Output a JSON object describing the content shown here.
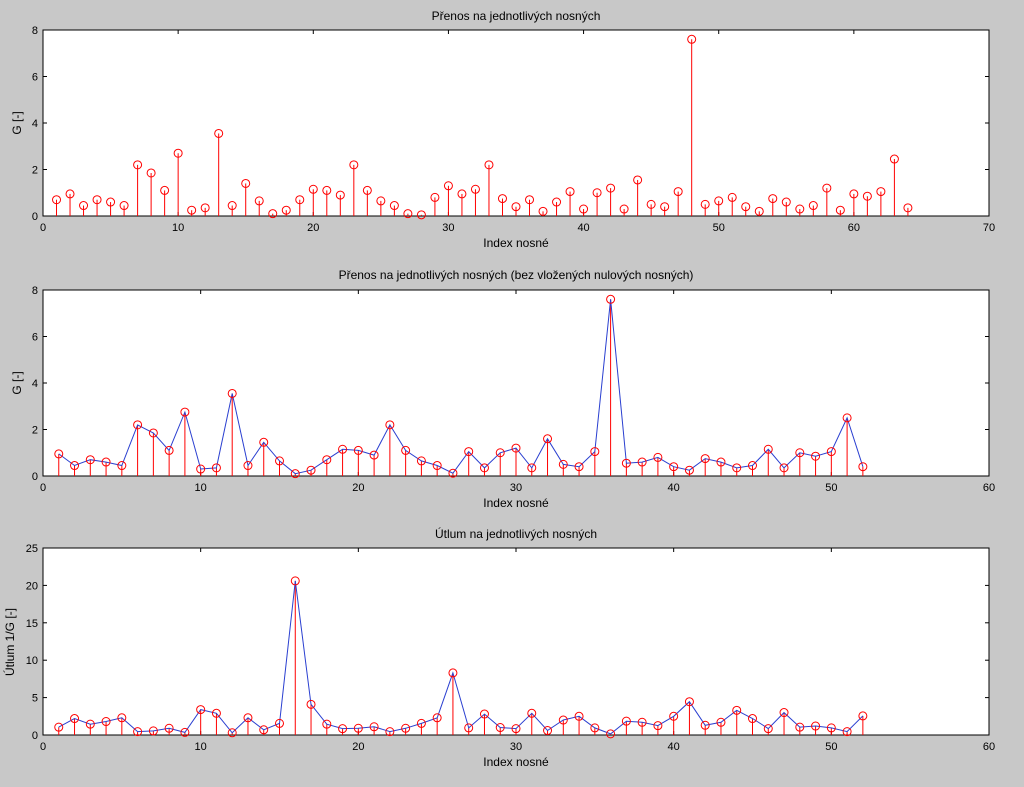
{
  "chart_data": [
    {
      "type": "stem",
      "title": "Přenos na jednotlivých nosných",
      "xlabel": "Index nosné",
      "ylabel": "G [-]",
      "xlim": [
        0,
        70
      ],
      "ylim": [
        0,
        8
      ],
      "xticks": [
        0,
        10,
        20,
        30,
        40,
        50,
        60,
        70
      ],
      "yticks": [
        0,
        2,
        4,
        6,
        8
      ],
      "grid": false,
      "line_connect": false,
      "colors": {
        "stem": "#ff0000",
        "marker": "#ff0000",
        "line": "#2a3fd0"
      },
      "x": [
        1,
        2,
        3,
        4,
        5,
        6,
        7,
        8,
        9,
        10,
        11,
        12,
        13,
        14,
        15,
        16,
        17,
        18,
        19,
        20,
        21,
        22,
        23,
        24,
        25,
        26,
        27,
        28,
        29,
        30,
        31,
        32,
        33,
        34,
        35,
        36,
        37,
        38,
        39,
        40,
        41,
        42,
        43,
        44,
        45,
        46,
        47,
        48,
        49,
        50,
        51,
        52,
        53,
        54,
        55,
        56,
        57,
        58,
        59,
        60,
        61,
        62,
        63,
        64
      ],
      "y": [
        0.7,
        0.95,
        0.45,
        0.7,
        0.6,
        0.45,
        2.2,
        1.85,
        1.1,
        2.7,
        0.25,
        0.35,
        3.55,
        0.45,
        1.4,
        0.65,
        0.1,
        0.25,
        0.7,
        1.15,
        1.1,
        0.9,
        2.2,
        1.1,
        0.65,
        0.45,
        0.1,
        0.05,
        0.8,
        1.3,
        0.95,
        1.15,
        2.2,
        0.75,
        0.4,
        0.7,
        0.2,
        0.6,
        1.05,
        0.3,
        1.0,
        1.2,
        0.3,
        1.55,
        0.5,
        0.4,
        1.05,
        7.6,
        0.5,
        0.65,
        0.8,
        0.4,
        0.2,
        0.75,
        0.6,
        0.3,
        0.45,
        1.2,
        0.25,
        0.95,
        0.85,
        1.05,
        2.45,
        0.35
      ]
    },
    {
      "type": "stem",
      "title": "Přenos na jednotlivých nosných (bez vložených nulových nosných)",
      "xlabel": "Index nosné",
      "ylabel": "G [-]",
      "xlim": [
        0,
        60
      ],
      "ylim": [
        0,
        8
      ],
      "xticks": [
        0,
        10,
        20,
        30,
        40,
        50,
        60
      ],
      "yticks": [
        0,
        2,
        4,
        6,
        8
      ],
      "grid": false,
      "line_connect": true,
      "colors": {
        "stem": "#ff0000",
        "marker": "#ff0000",
        "line": "#2a3fd0"
      },
      "x": [
        1,
        2,
        3,
        4,
        5,
        6,
        7,
        8,
        9,
        10,
        11,
        12,
        13,
        14,
        15,
        16,
        17,
        18,
        19,
        20,
        21,
        22,
        23,
        24,
        25,
        26,
        27,
        28,
        29,
        30,
        31,
        32,
        33,
        34,
        35,
        36,
        37,
        38,
        39,
        40,
        41,
        42,
        43,
        44,
        45,
        46,
        47,
        48,
        49,
        50,
        51,
        52
      ],
      "y": [
        0.95,
        0.45,
        0.7,
        0.6,
        0.45,
        2.2,
        1.85,
        1.1,
        2.75,
        0.3,
        0.35,
        3.55,
        0.45,
        1.45,
        0.65,
        0.1,
        0.25,
        0.7,
        1.15,
        1.1,
        0.9,
        2.2,
        1.1,
        0.65,
        0.45,
        0.12,
        1.05,
        0.35,
        1.0,
        1.2,
        0.35,
        1.6,
        0.5,
        0.4,
        1.05,
        7.6,
        0.55,
        0.6,
        0.8,
        0.4,
        0.25,
        0.75,
        0.6,
        0.35,
        0.45,
        1.15,
        0.35,
        1.0,
        0.85,
        1.05,
        2.5,
        0.4
      ]
    },
    {
      "type": "stem",
      "title": "Útlum na jednotlivých nosných",
      "xlabel": "Index nosné",
      "ylabel": "Útlum 1/G [-]",
      "xlim": [
        0,
        60
      ],
      "ylim": [
        0,
        25
      ],
      "xticks": [
        0,
        10,
        20,
        30,
        40,
        50,
        60
      ],
      "yticks": [
        0,
        5,
        10,
        15,
        20,
        25
      ],
      "grid": false,
      "line_connect": true,
      "colors": {
        "stem": "#ff0000",
        "marker": "#ff0000",
        "line": "#2a3fd0"
      },
      "x": [
        1,
        2,
        3,
        4,
        5,
        6,
        7,
        8,
        9,
        10,
        11,
        12,
        13,
        14,
        15,
        16,
        17,
        18,
        19,
        20,
        21,
        22,
        23,
        24,
        25,
        26,
        27,
        28,
        29,
        30,
        31,
        32,
        33,
        34,
        35,
        36,
        37,
        38,
        39,
        40,
        41,
        42,
        43,
        44,
        45,
        46,
        47,
        48,
        49,
        50,
        51,
        52
      ],
      "y": [
        1.05,
        2.2,
        1.45,
        1.8,
        2.3,
        0.45,
        0.55,
        0.9,
        0.35,
        3.4,
        2.9,
        0.3,
        2.3,
        0.7,
        1.55,
        20.6,
        4.1,
        1.45,
        0.85,
        0.9,
        1.1,
        0.45,
        0.9,
        1.55,
        2.3,
        8.3,
        0.95,
        2.8,
        1.0,
        0.85,
        2.9,
        0.6,
        2.0,
        2.5,
        0.95,
        0.15,
        1.85,
        1.7,
        1.25,
        2.5,
        4.45,
        1.3,
        1.7,
        3.3,
        2.2,
        0.85,
        3.0,
        1.05,
        1.2,
        0.95,
        0.45,
        2.55
      ]
    }
  ]
}
